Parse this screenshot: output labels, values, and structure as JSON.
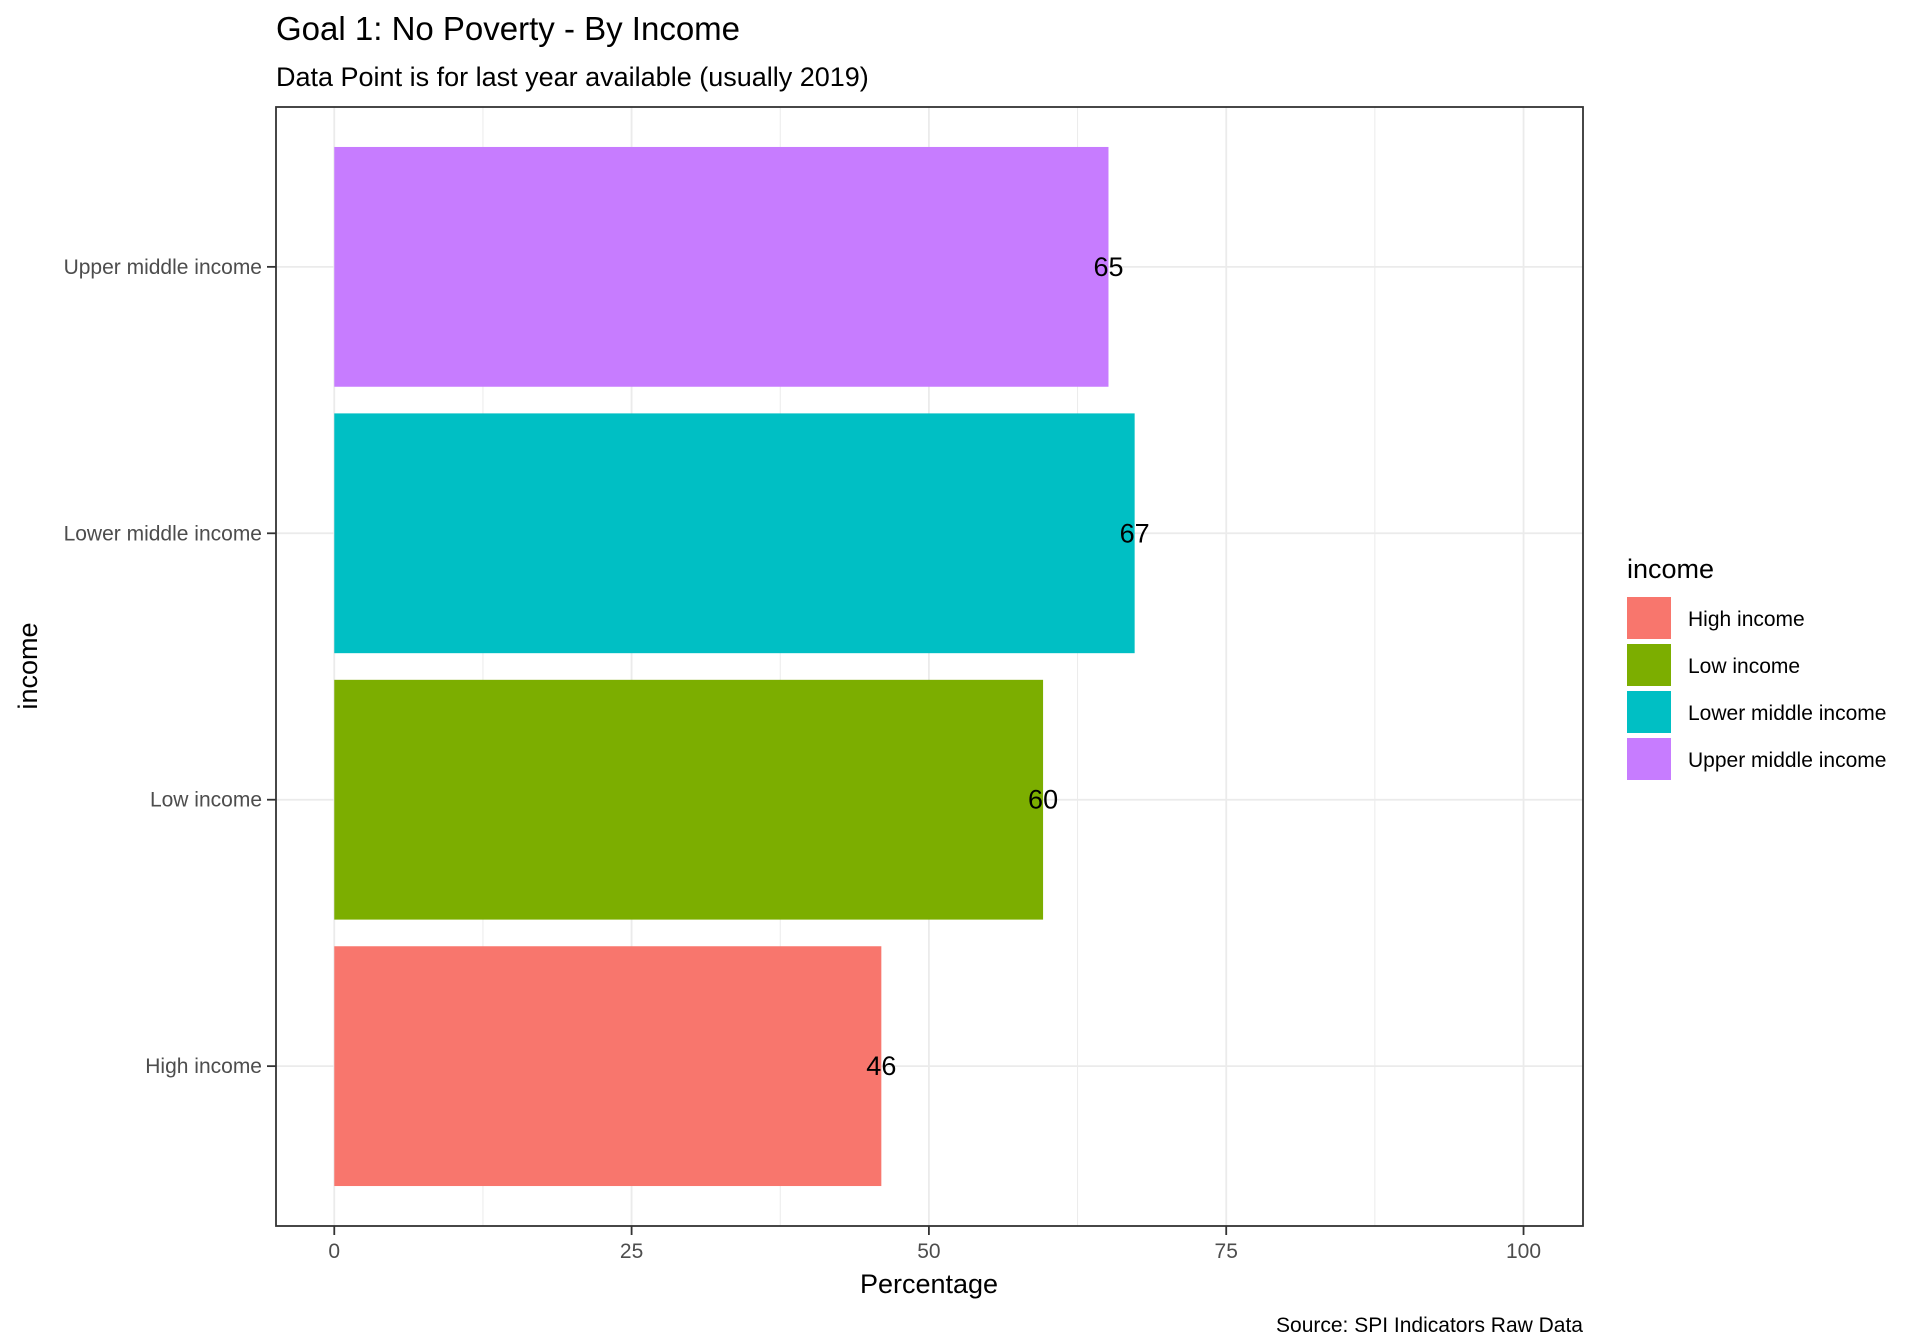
{
  "chart_data": {
    "type": "bar",
    "orientation": "horizontal",
    "title": "Goal 1: No Poverty - By Income",
    "subtitle": "Data Point is for last year available (usually 2019)",
    "xlabel": "Percentage",
    "ylabel": "income",
    "caption": "Source: SPI Indicators Raw Data",
    "xlim": [
      -4.9,
      105
    ],
    "x_ticks": [
      0,
      25,
      50,
      75,
      100
    ],
    "x_tick_labels": [
      "0",
      "25",
      "50",
      "75",
      "100"
    ],
    "grid": true,
    "categories": [
      "High income",
      "Low income",
      "Lower middle income",
      "Upper middle income"
    ],
    "values": [
      46,
      59.6,
      67.3,
      65.1
    ],
    "value_labels": [
      "46",
      "60",
      "67",
      "65"
    ],
    "colors": [
      "#F8766D",
      "#7CAE00",
      "#00BFC4",
      "#C77CFF"
    ],
    "legend": {
      "title": "income",
      "position": "right",
      "entries": [
        "High income",
        "Low income",
        "Lower middle income",
        "Upper middle income"
      ]
    }
  }
}
